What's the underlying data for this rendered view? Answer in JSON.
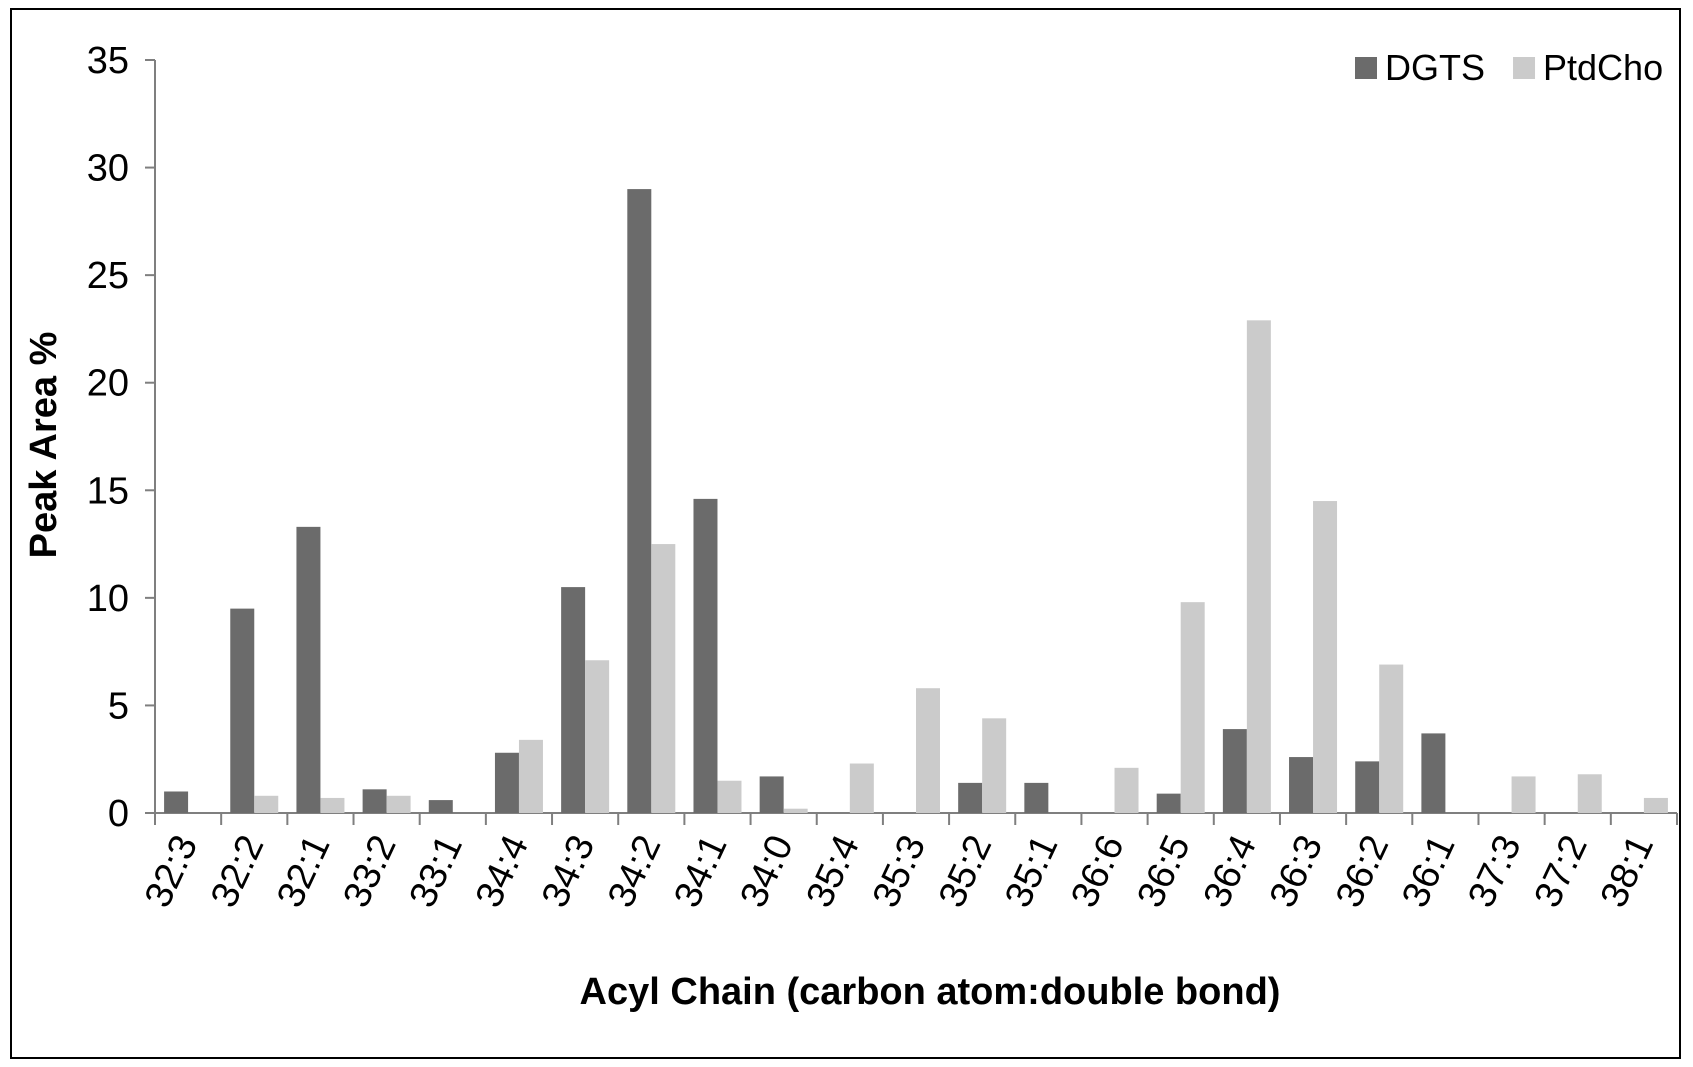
{
  "chart_data": {
    "type": "bar",
    "xlabel": "Acyl Chain (carbon atom:double bond)",
    "ylabel": "Peak Area %",
    "ylim": [
      0,
      35
    ],
    "yticks": [
      0,
      5,
      10,
      15,
      20,
      25,
      30,
      35
    ],
    "grid": false,
    "legend_position": "top-right",
    "categories": [
      "32:3",
      "32:2",
      "32:1",
      "33:2",
      "33:1",
      "34:4",
      "34:3",
      "34:2",
      "34:1",
      "34:0",
      "35:4",
      "35:3",
      "35:2",
      "35:1",
      "36:6",
      "36:5",
      "36:4",
      "36:3",
      "36:2",
      "36:1",
      "37:3",
      "37:2",
      "38:1"
    ],
    "series": [
      {
        "name": "DGTS",
        "color": "#6b6b6b",
        "values": [
          1.0,
          9.5,
          13.3,
          1.1,
          0.6,
          2.8,
          10.5,
          29.0,
          14.6,
          1.7,
          0,
          0,
          1.4,
          1.4,
          0,
          0.9,
          3.9,
          2.6,
          2.4,
          3.7,
          0,
          0,
          0
        ]
      },
      {
        "name": "PtdCho",
        "color": "#cbcbcb",
        "values": [
          0,
          0.8,
          0.7,
          0.8,
          0,
          3.4,
          7.1,
          12.5,
          1.5,
          0.2,
          2.3,
          5.8,
          4.4,
          0,
          2.1,
          9.8,
          22.9,
          14.5,
          6.9,
          0,
          1.7,
          1.8,
          0.7
        ]
      }
    ]
  }
}
